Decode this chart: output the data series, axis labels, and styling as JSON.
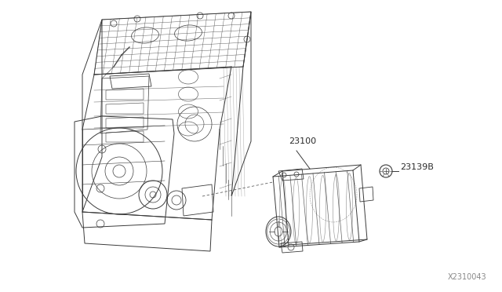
{
  "background_color": "#ffffff",
  "line_color": "#3a3a3a",
  "text_color": "#2a2a2a",
  "label_23100": "23100",
  "label_23139B": "23139B",
  "label_diagram_id": "X2310043",
  "figsize": [
    6.4,
    3.72
  ],
  "dpi": 100,
  "font_size_labels": 8,
  "font_size_diagram_id": 7,
  "engine_color": "#1a1a1a",
  "alt_color": "#1a1a1a"
}
